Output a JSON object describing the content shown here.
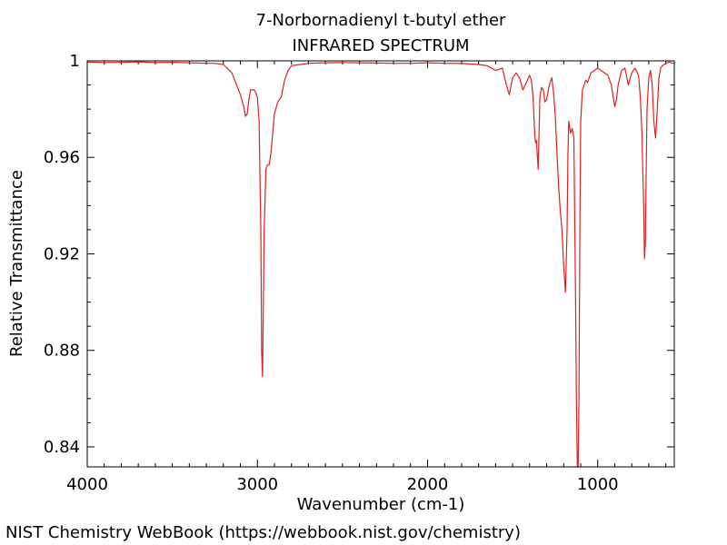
{
  "chart_data": {
    "type": "line",
    "title": "7-Norbornadienyl t-butyl ether",
    "subtitle": "INFRARED SPECTRUM",
    "xlabel": "Wavenumber (cm-1)",
    "ylabel": "Relative Transmittance",
    "xlim": [
      4000,
      550
    ],
    "ylim": [
      0.8317,
      1.0
    ],
    "x_reversed": true,
    "grid": false,
    "x_ticks": [
      4000,
      3000,
      2000,
      1000
    ],
    "x_tick_labels": [
      "4000",
      "3000",
      "2000",
      "1000"
    ],
    "y_ticks": [
      0.84,
      0.88,
      0.92,
      0.96,
      1.0
    ],
    "y_tick_labels": [
      "0.84",
      "0.88",
      "0.92",
      "0.96",
      "1"
    ],
    "line_color": "#e02020",
    "series": [
      {
        "x": [
          4000,
          3900,
          3800,
          3700,
          3600,
          3500,
          3400,
          3300,
          3250,
          3200,
          3150,
          3100,
          3080,
          3070,
          3060,
          3050,
          3040,
          3020,
          3010,
          3000,
          2990,
          2980,
          2975,
          2970,
          2960,
          2950,
          2940,
          2930,
          2920,
          2910,
          2900,
          2880,
          2860,
          2840,
          2820,
          2800,
          2750,
          2700,
          2600,
          2500,
          2400,
          2300,
          2200,
          2100,
          2000,
          1900,
          1800,
          1700,
          1650,
          1600,
          1560,
          1540,
          1520,
          1500,
          1480,
          1460,
          1440,
          1420,
          1400,
          1390,
          1380,
          1370,
          1365,
          1360,
          1350,
          1340,
          1330,
          1320,
          1310,
          1300,
          1290,
          1280,
          1270,
          1260,
          1250,
          1240,
          1230,
          1220,
          1210,
          1200,
          1190,
          1180,
          1175,
          1170,
          1160,
          1150,
          1140,
          1130,
          1125,
          1120,
          1115,
          1110,
          1105,
          1100,
          1090,
          1080,
          1070,
          1060,
          1050,
          1040,
          1020,
          1000,
          980,
          960,
          940,
          920,
          900,
          890,
          880,
          860,
          840,
          820,
          800,
          780,
          760,
          750,
          740,
          730,
          725,
          720,
          715,
          710,
          700,
          690,
          680,
          670,
          660,
          650,
          640,
          630,
          620,
          600,
          580,
          560,
          550
        ],
        "y": [
          0.9995,
          0.9993,
          0.9994,
          0.9996,
          0.9993,
          0.9994,
          0.9992,
          0.999,
          0.999,
          0.9985,
          0.995,
          0.986,
          0.981,
          0.977,
          0.978,
          0.984,
          0.988,
          0.988,
          0.987,
          0.985,
          0.975,
          0.93,
          0.88,
          0.869,
          0.93,
          0.955,
          0.957,
          0.957,
          0.962,
          0.97,
          0.978,
          0.983,
          0.985,
          0.992,
          0.996,
          0.998,
          0.9985,
          0.999,
          0.9992,
          0.9993,
          0.9992,
          0.9991,
          0.999,
          0.999,
          0.9992,
          0.999,
          0.9989,
          0.9985,
          0.998,
          0.996,
          0.997,
          0.991,
          0.986,
          0.993,
          0.995,
          0.993,
          0.988,
          0.991,
          0.994,
          0.992,
          0.985,
          0.969,
          0.966,
          0.967,
          0.955,
          0.985,
          0.989,
          0.988,
          0.983,
          0.984,
          0.988,
          0.991,
          0.993,
          0.987,
          0.978,
          0.963,
          0.948,
          0.938,
          0.93,
          0.915,
          0.904,
          0.93,
          0.962,
          0.975,
          0.97,
          0.972,
          0.968,
          0.9,
          0.86,
          0.8317,
          0.8317,
          0.86,
          0.93,
          0.975,
          0.988,
          0.99,
          0.992,
          0.991,
          0.993,
          0.995,
          0.996,
          0.997,
          0.996,
          0.995,
          0.994,
          0.99,
          0.981,
          0.984,
          0.99,
          0.996,
          0.997,
          0.99,
          0.995,
          0.997,
          0.994,
          0.985,
          0.97,
          0.94,
          0.918,
          0.925,
          0.955,
          0.98,
          0.993,
          0.996,
          0.99,
          0.975,
          0.968,
          0.98,
          0.993,
          0.997,
          0.998,
          0.999,
          0.9995,
          0.999,
          0.999
        ]
      }
    ]
  },
  "footer": {
    "text": "NIST Chemistry WebBook (https://webbook.nist.gov/chemistry)"
  }
}
